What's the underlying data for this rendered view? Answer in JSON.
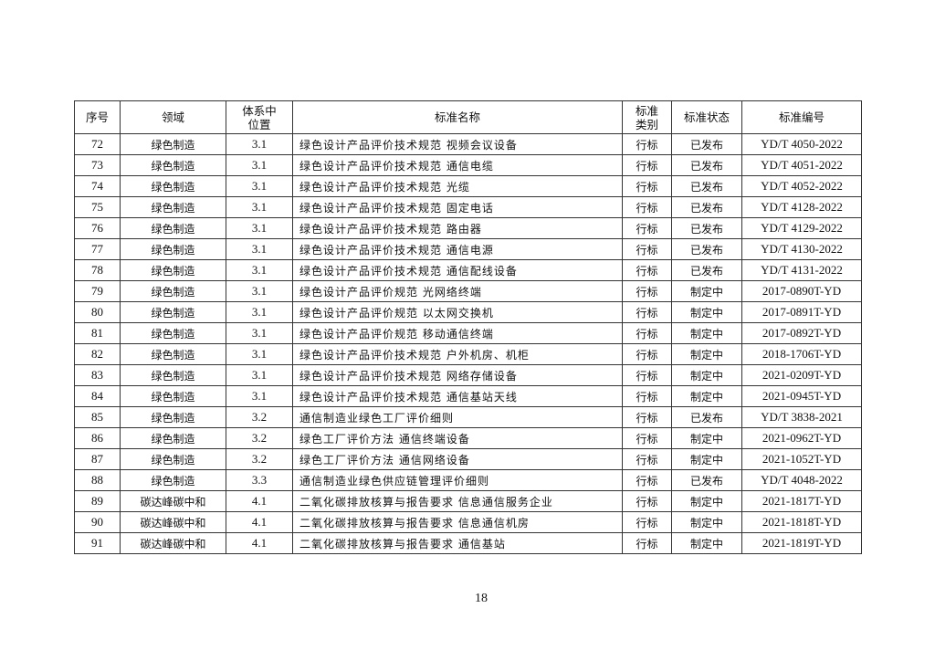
{
  "table": {
    "headers": [
      "序号",
      "领域",
      "体系中\n位置",
      "标准名称",
      "标准\n类别",
      "标准状态",
      "标准编号"
    ],
    "rows": [
      [
        "72",
        "绿色制造",
        "3.1",
        "绿色设计产品评价技术规范 视频会议设备",
        "行标",
        "已发布",
        "YD/T 4050-2022"
      ],
      [
        "73",
        "绿色制造",
        "3.1",
        "绿色设计产品评价技术规范 通信电缆",
        "行标",
        "已发布",
        "YD/T 4051-2022"
      ],
      [
        "74",
        "绿色制造",
        "3.1",
        "绿色设计产品评价技术规范 光缆",
        "行标",
        "已发布",
        "YD/T 4052-2022"
      ],
      [
        "75",
        "绿色制造",
        "3.1",
        "绿色设计产品评价技术规范 固定电话",
        "行标",
        "已发布",
        "YD/T 4128-2022"
      ],
      [
        "76",
        "绿色制造",
        "3.1",
        "绿色设计产品评价技术规范 路由器",
        "行标",
        "已发布",
        "YD/T 4129-2022"
      ],
      [
        "77",
        "绿色制造",
        "3.1",
        "绿色设计产品评价技术规范 通信电源",
        "行标",
        "已发布",
        "YD/T 4130-2022"
      ],
      [
        "78",
        "绿色制造",
        "3.1",
        "绿色设计产品评价技术规范 通信配线设备",
        "行标",
        "已发布",
        "YD/T 4131-2022"
      ],
      [
        "79",
        "绿色制造",
        "3.1",
        "绿色设计产品评价规范 光网络终端",
        "行标",
        "制定中",
        "2017-0890T-YD"
      ],
      [
        "80",
        "绿色制造",
        "3.1",
        "绿色设计产品评价规范 以太网交换机",
        "行标",
        "制定中",
        "2017-0891T-YD"
      ],
      [
        "81",
        "绿色制造",
        "3.1",
        "绿色设计产品评价规范 移动通信终端",
        "行标",
        "制定中",
        "2017-0892T-YD"
      ],
      [
        "82",
        "绿色制造",
        "3.1",
        "绿色设计产品评价技术规范 户外机房、机柜",
        "行标",
        "制定中",
        "2018-1706T-YD"
      ],
      [
        "83",
        "绿色制造",
        "3.1",
        "绿色设计产品评价技术规范 网络存储设备",
        "行标",
        "制定中",
        "2021-0209T-YD"
      ],
      [
        "84",
        "绿色制造",
        "3.1",
        "绿色设计产品评价技术规范 通信基站天线",
        "行标",
        "制定中",
        "2021-0945T-YD"
      ],
      [
        "85",
        "绿色制造",
        "3.2",
        "通信制造业绿色工厂评价细则",
        "行标",
        "已发布",
        "YD/T 3838-2021"
      ],
      [
        "86",
        "绿色制造",
        "3.2",
        "绿色工厂评价方法 通信终端设备",
        "行标",
        "制定中",
        "2021-0962T-YD"
      ],
      [
        "87",
        "绿色制造",
        "3.2",
        "绿色工厂评价方法 通信网络设备",
        "行标",
        "制定中",
        "2021-1052T-YD"
      ],
      [
        "88",
        "绿色制造",
        "3.3",
        "通信制造业绿色供应链管理评价细则",
        "行标",
        "已发布",
        "YD/T 4048-2022"
      ],
      [
        "89",
        "碳达峰碳中和",
        "4.1",
        "二氧化碳排放核算与报告要求 信息通信服务企业",
        "行标",
        "制定中",
        "2021-1817T-YD"
      ],
      [
        "90",
        "碳达峰碳中和",
        "4.1",
        "二氧化碳排放核算与报告要求 信息通信机房",
        "行标",
        "制定中",
        "2021-1818T-YD"
      ],
      [
        "91",
        "碳达峰碳中和",
        "4.1",
        "二氧化碳排放核算与报告要求 通信基站",
        "行标",
        "制定中",
        "2021-1819T-YD"
      ]
    ]
  },
  "page_number": "18"
}
